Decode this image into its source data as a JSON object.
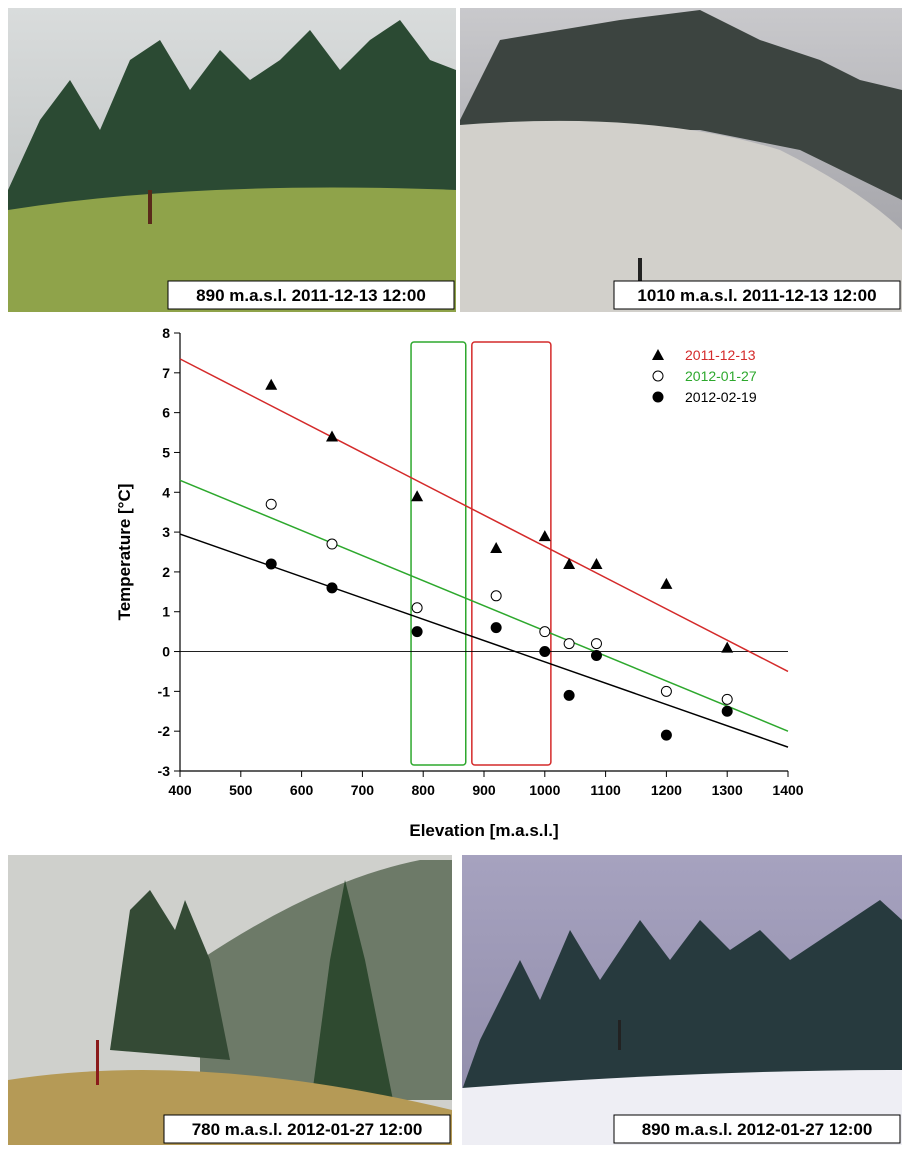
{
  "photos": [
    {
      "caption": "890 m.a.s.l. 2011-12-13 12:00"
    },
    {
      "caption": "1010 m.a.s.l. 2011-12-13 12:00"
    },
    {
      "caption": "780 m.a.s.l. 2012-01-27 12:00"
    },
    {
      "caption": "890 m.a.s.l. 2012-01-27 12:00"
    }
  ],
  "chart_data": {
    "type": "scatter",
    "x_label": "Elevation [m.a.s.l.]",
    "y_label": "Temperature [°C]",
    "xlim": [
      400,
      1400
    ],
    "ylim": [
      -3,
      8
    ],
    "xticks": [
      400,
      500,
      600,
      700,
      800,
      900,
      1000,
      1100,
      1200,
      1300,
      1400
    ],
    "yticks": [
      -3,
      -2,
      -1,
      0,
      1,
      2,
      3,
      4,
      5,
      6,
      7,
      8
    ],
    "zero_line": 0,
    "x": [
      550,
      650,
      790,
      920,
      1000,
      1040,
      1085,
      1200,
      1300
    ],
    "trend_x": [
      400,
      1400
    ],
    "series": [
      {
        "name": "2011-12-13",
        "color": "#d42a2a",
        "marker": "triangle",
        "values": [
          6.7,
          5.4,
          3.9,
          2.6,
          2.9,
          2.2,
          2.2,
          1.7,
          0.1
        ],
        "trend": [
          7.35,
          -0.5
        ]
      },
      {
        "name": "2012-01-27",
        "color": "#2da82d",
        "marker": "open-circle",
        "values": [
          3.7,
          2.7,
          1.1,
          1.4,
          0.5,
          0.2,
          0.2,
          -1.0,
          -1.2
        ],
        "trend": [
          4.3,
          -2.0
        ]
      },
      {
        "name": "2012-02-19",
        "color": "#000000",
        "marker": "circle",
        "values": [
          2.2,
          1.6,
          0.5,
          0.6,
          0.0,
          -1.1,
          -0.1,
          -2.1,
          -1.5
        ],
        "trend": [
          2.95,
          -2.4
        ]
      }
    ],
    "highlights": [
      {
        "x": [
          780,
          870
        ],
        "color": "#2da82d"
      },
      {
        "x": [
          880,
          1010
        ],
        "color": "#d42a2a"
      }
    ]
  }
}
